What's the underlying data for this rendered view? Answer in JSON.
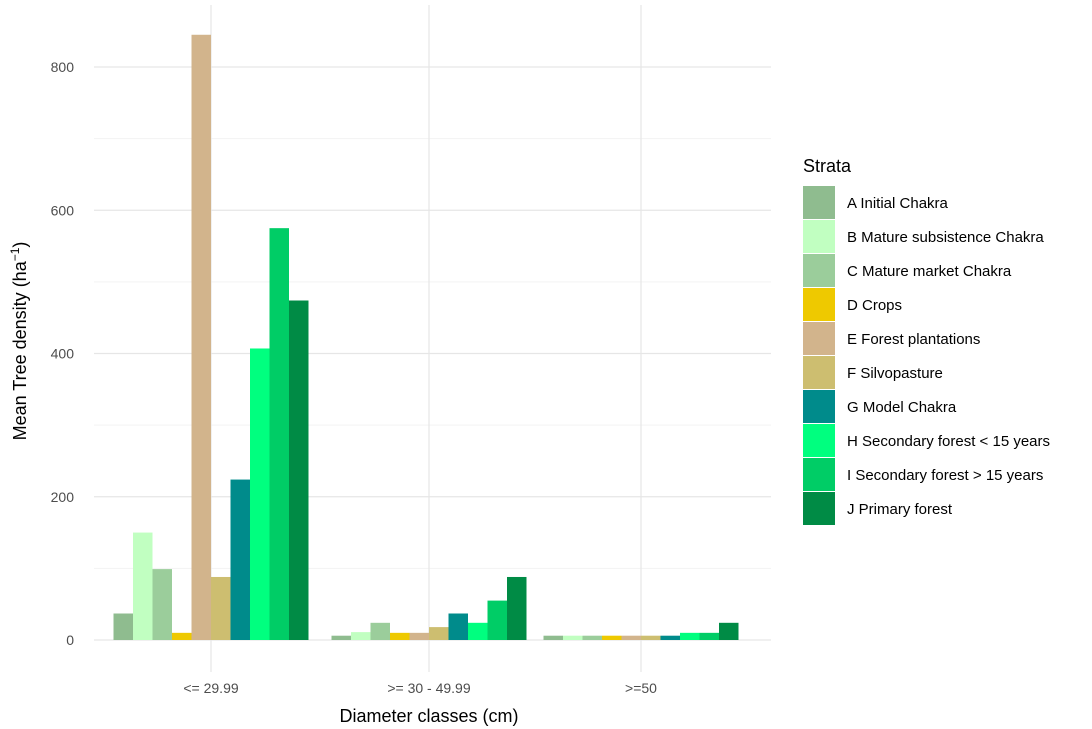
{
  "chart_data": {
    "type": "bar",
    "title": "",
    "xlabel": "Diameter classes (cm)",
    "ylabel_main": "Mean Tree density (ha",
    "ylabel_sup": "−1",
    "ylabel_close": ")",
    "ylim": [
      0,
      880
    ],
    "yticks": [
      0,
      200,
      400,
      600,
      800
    ],
    "grid": true,
    "legend_position": "right",
    "legend_title": "Strata",
    "categories": [
      "<= 29.99",
      ">= 30 - 49.99",
      ">=50"
    ],
    "series": [
      {
        "name": "A Initial Chakra",
        "color": "#8fbc8f",
        "values": [
          37,
          6,
          6
        ]
      },
      {
        "name": "B Mature subsistence Chakra",
        "color": "#c1ffc1",
        "values": [
          150,
          11,
          6
        ]
      },
      {
        "name": "C Mature market Chakra",
        "color": "#9bcd9b",
        "values": [
          99,
          24,
          6
        ]
      },
      {
        "name": "D Crops",
        "color": "#eec900",
        "values": [
          10,
          10,
          6
        ]
      },
      {
        "name": "E Forest plantations",
        "color": "#d2b48c",
        "values": [
          845,
          10,
          6
        ]
      },
      {
        "name": "F Silvopasture",
        "color": "#cdbe70",
        "values": [
          88,
          18,
          6
        ]
      },
      {
        "name": "G Model Chakra",
        "color": "#008b8b",
        "values": [
          224,
          37,
          6
        ]
      },
      {
        "name": "H Secondary forest < 15 years",
        "color": "#00ff7f",
        "values": [
          407,
          24,
          10
        ]
      },
      {
        "name": "I Secondary forest > 15 years",
        "color": "#00cd66",
        "values": [
          575,
          55,
          10
        ]
      },
      {
        "name": "J Primary forest",
        "color": "#008b45",
        "values": [
          474,
          88,
          24
        ]
      }
    ]
  }
}
